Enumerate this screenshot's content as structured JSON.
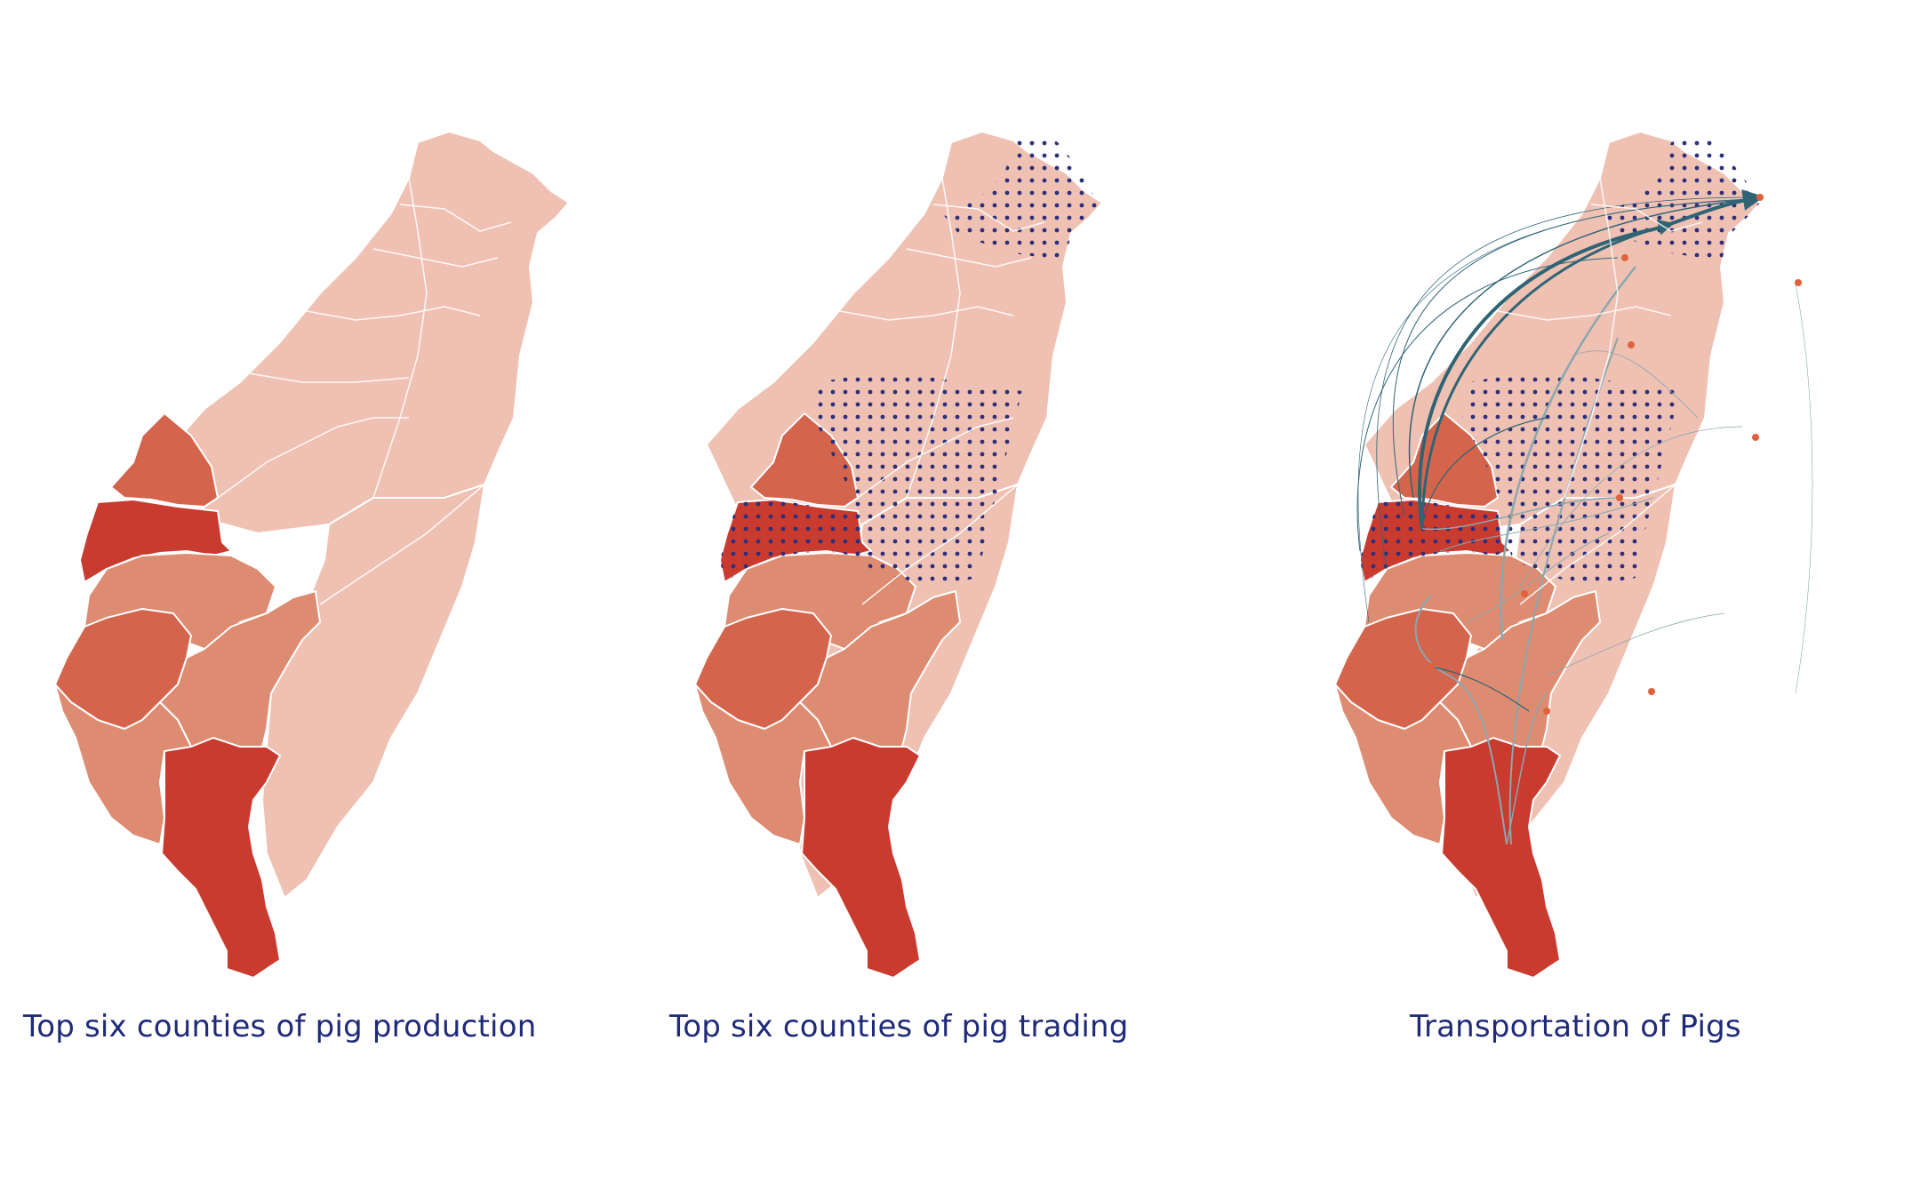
{
  "maps": [
    {
      "caption": "Top six counties of pig production"
    },
    {
      "caption": "Top six counties of pig trading"
    },
    {
      "caption": "Transportation of Pigs"
    }
  ],
  "colors": {
    "low": "#efc1b3",
    "medium": "#dd8b71",
    "high": "#d4644c",
    "top": "#c93a2f",
    "border": "#ffffff",
    "dot": "#2d2f7a",
    "flow_main": "#2f6475",
    "flow_light": "#8aa7ae",
    "caption": "#1f2a78"
  }
}
